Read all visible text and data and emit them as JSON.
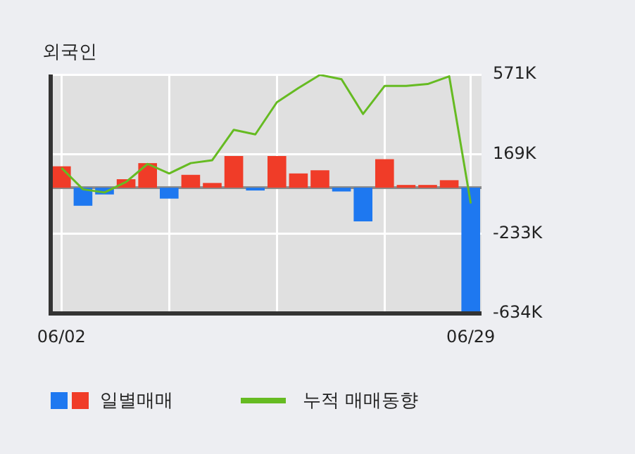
{
  "chart_data": {
    "type": "bar",
    "title": "외국인",
    "categories": [
      "06/02",
      null,
      null,
      null,
      null,
      null,
      null,
      null,
      null,
      null,
      null,
      null,
      null,
      null,
      null,
      null,
      null,
      null,
      null,
      "06/29"
    ],
    "series": [
      {
        "name": "일별매매",
        "colors": [
          "#f03c28",
          "#1e78f0",
          "#1e78f0",
          "#f03c28",
          "#f03c28",
          "#1e78f0",
          "#f03c28",
          "#f03c28",
          "#f03c28",
          "#1e78f0",
          "#f03c28",
          "#f03c28",
          "#f03c28",
          "#1e78f0",
          "#1e78f0",
          "#f03c28",
          "#f03c28",
          "#f03c28",
          "#f03c28",
          "#1e78f0"
        ],
        "values": [
          108,
          -91,
          -34,
          43,
          124,
          -55,
          65,
          24,
          160,
          -14,
          160,
          72,
          88,
          -19,
          -170,
          144,
          14,
          14,
          38,
          -630
        ]
      },
      {
        "name": "누적 매매동향",
        "type": "line",
        "color": "#66bb22",
        "values": [
          100,
          -8,
          -24,
          29,
          120,
          72,
          124,
          139,
          292,
          269,
          431,
          503,
          569,
          547,
          372,
          513,
          513,
          523,
          562,
          -79
        ]
      }
    ],
    "ylim": [
      -634,
      571
    ],
    "yticks": [
      {
        "value": 571,
        "label": "571K"
      },
      {
        "value": 169,
        "label": "169K"
      },
      {
        "value": -233,
        "label": "-233K"
      },
      {
        "value": -634,
        "label": "-634K"
      }
    ],
    "grid": true,
    "legend": "bottom",
    "marker": "none"
  }
}
